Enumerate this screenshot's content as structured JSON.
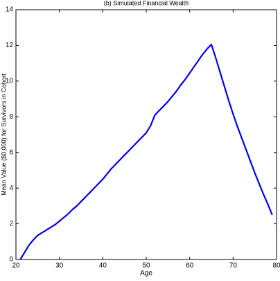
{
  "chart_data": {
    "type": "line",
    "title": "(b) Simulated Financial Wealth",
    "x_label": "Age",
    "y_label": "Mean Value ($0,000) for Survivors in Cohort",
    "x": [
      21,
      22,
      23,
      24,
      25,
      26,
      27,
      28,
      29,
      30,
      31,
      32,
      33,
      34,
      35,
      36,
      37,
      38,
      39,
      40,
      41,
      42,
      43,
      44,
      45,
      46,
      47,
      48,
      49,
      50,
      51,
      52,
      53,
      54,
      55,
      56,
      57,
      58,
      59,
      60,
      61,
      62,
      63,
      64,
      65,
      66,
      67,
      68,
      69,
      70,
      71,
      72,
      73,
      74,
      75,
      76,
      77,
      78,
      79
    ],
    "series": [
      {
        "name": "Simulated Financial Wealth",
        "color": "#0000ee",
        "values": [
          0,
          0.4,
          0.8,
          1.1,
          1.35,
          1.5,
          1.65,
          1.8,
          1.95,
          2.15,
          2.35,
          2.55,
          2.8,
          3.0,
          3.25,
          3.5,
          3.75,
          4.0,
          4.25,
          4.5,
          4.8,
          5.1,
          5.35,
          5.6,
          5.85,
          6.1,
          6.35,
          6.6,
          6.85,
          7.1,
          7.5,
          8.1,
          8.35,
          8.6,
          8.85,
          9.15,
          9.45,
          9.8,
          10.1,
          10.45,
          10.8,
          11.15,
          11.5,
          11.8,
          12.05,
          11.3,
          10.5,
          9.7,
          8.9,
          8.15,
          7.45,
          6.8,
          6.15,
          5.5,
          4.85,
          4.25,
          3.65,
          3.1,
          2.5
        ]
      }
    ],
    "xlim": [
      20,
      80
    ],
    "xticks": [
      20,
      30,
      40,
      50,
      60,
      70,
      80
    ],
    "ylim": [
      0,
      14
    ],
    "yticks": [
      0,
      2,
      4,
      6,
      8,
      10,
      12,
      14
    ],
    "grid": false
  }
}
